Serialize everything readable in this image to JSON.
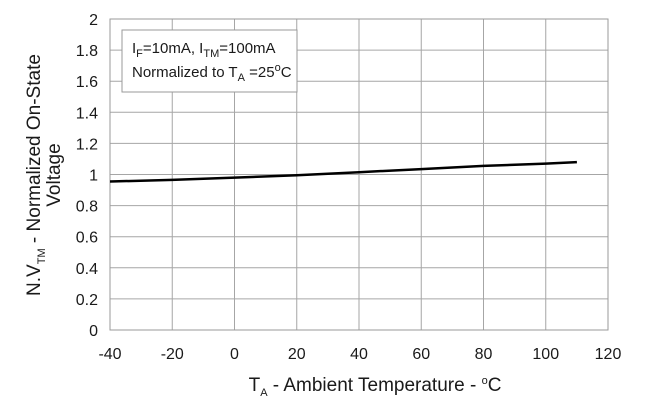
{
  "chart_data": {
    "type": "line",
    "xlabel": {
      "main": "T",
      "sub": "A",
      "rest": " - Ambient Temperature - ",
      "deg": "o",
      "unit": "C"
    },
    "ylabel": {
      "line1_pre": "N.V",
      "line1_sub": "TM",
      "line1_post": " - Normalized On-State",
      "line2": "Voltage"
    },
    "xlim": [
      -40,
      120
    ],
    "ylim": [
      0,
      2
    ],
    "x_ticks": [
      "-40",
      "-20",
      "0",
      "20",
      "40",
      "60",
      "80",
      "100",
      "120"
    ],
    "y_ticks": [
      "0",
      "0.2",
      "0.4",
      "0.6",
      "0.8",
      "1",
      "1.2",
      "1.4",
      "1.6",
      "1.8",
      "2"
    ],
    "grid": true,
    "series": [
      {
        "x": [
          -40,
          -20,
          0,
          20,
          40,
          60,
          80,
          100,
          110
        ],
        "y": [
          0.955,
          0.965,
          0.98,
          0.995,
          1.015,
          1.035,
          1.055,
          1.07,
          1.08
        ]
      }
    ],
    "annotation": {
      "line1": {
        "a": "I",
        "a_sub": "F",
        "b": "=10mA, I",
        "b_sub": "TM",
        "c": "=100mA"
      },
      "line2": {
        "a": "Normalized to T",
        "a_sub": "A",
        "b": " =25",
        "deg": "o",
        "c": "C"
      }
    }
  }
}
